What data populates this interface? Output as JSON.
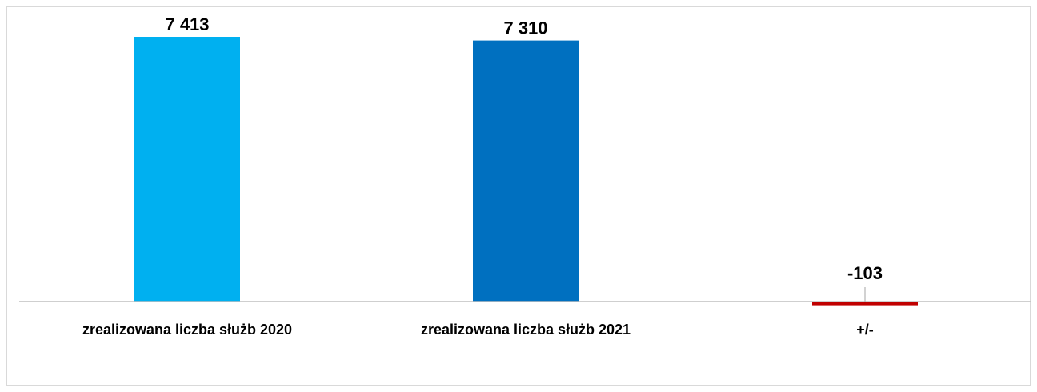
{
  "chart_data": {
    "type": "bar",
    "categories": [
      "zrealizowana liczba służb 2020",
      "zrealizowana liczba służb 2021",
      "+/-"
    ],
    "values": [
      7413,
      7310,
      -103
    ],
    "data_labels": [
      "7 413",
      "7 310",
      "-103"
    ],
    "colors": [
      "#00B0F0",
      "#0070C0",
      "#C00000"
    ],
    "ylim": [
      -103,
      7413
    ],
    "grid": false,
    "legend": "none",
    "title": "",
    "xlabel": "",
    "ylabel": ""
  }
}
